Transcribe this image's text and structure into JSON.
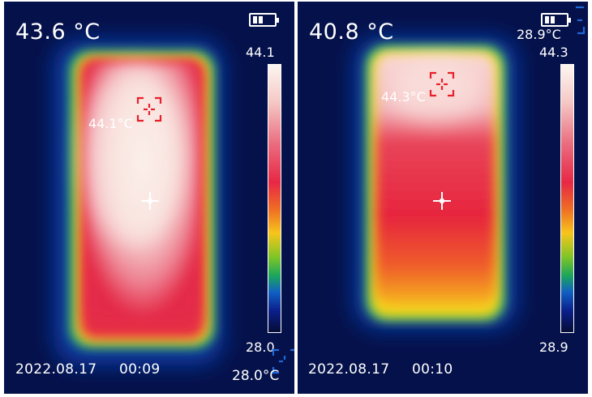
{
  "panels": [
    {
      "main_temp": "43.6 °C",
      "scale_max": "44.1",
      "scale_min": "28.0",
      "hot_spot_label": "44.1°C",
      "cold_spot_label": "28.0°C",
      "date": "2022.08.17",
      "time": "00:09",
      "battery_icon": "battery-icon",
      "colors": {
        "hot": "#fdf6f0",
        "warm": "#e72845",
        "edge": "#f7c51c",
        "background": "#05114a"
      }
    },
    {
      "main_temp": "40.8 °C",
      "scale_max": "44.3",
      "scale_min": "28.9",
      "hot_spot_label": "44.3°C",
      "cold_spot_label": "28.9°C",
      "date": "2022.08.17",
      "time": "00:10",
      "battery_icon": "battery-icon",
      "colors": {
        "hot": "#f8d4d0",
        "warm": "#e8253f",
        "edge": "#f7c51c",
        "background": "#05114a"
      }
    }
  ]
}
